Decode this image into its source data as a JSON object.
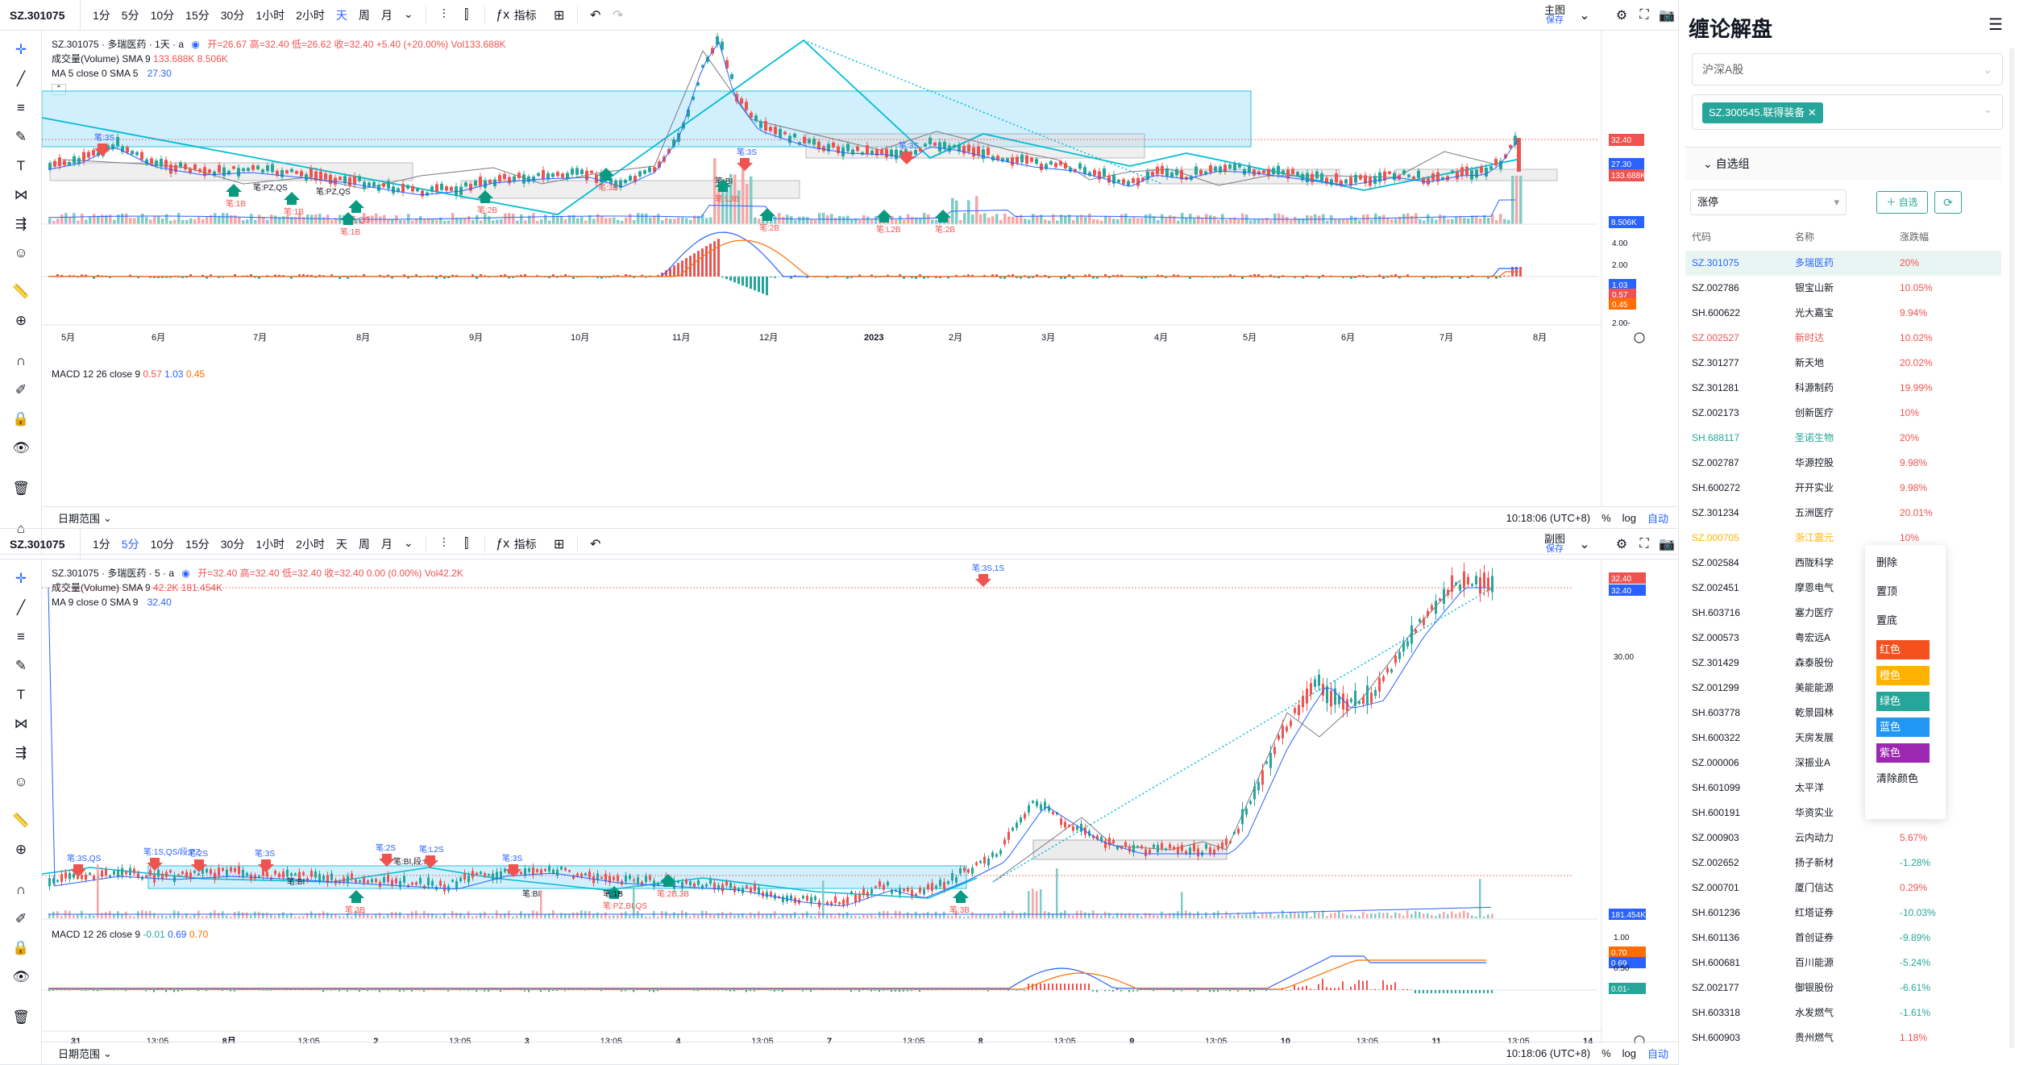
{
  "top": {
    "symbol": "SZ.301075",
    "intervals": [
      "1分",
      "5分",
      "10分",
      "15分",
      "30分",
      "1小时",
      "2小时",
      "天",
      "周",
      "月"
    ],
    "active_interval": "天",
    "indicator_label": "指标",
    "layout_label": "主图",
    "save_label": "保存",
    "legend_title": "SZ.301075 · 多瑞医药 · 1天 · a",
    "legend_ohlc": "开=26.67 高=32.40 低=26.62 收=32.40 +5.40 (+20.00%) Vol133.688K",
    "vol_label": "成交量(Volume) SMA 9",
    "vol_values": "133.688K 8.506K",
    "ma_label": "MA 5 close 0 SMA 5",
    "ma_value": "27.30",
    "macd_label": "MACD 12 26 close 9",
    "macd_v1": "0.57",
    "macd_v2": "1.03",
    "macd_v3": "0.45",
    "time_labels": [
      "5月",
      "6月",
      "7月",
      "8月",
      "9月",
      "10月",
      "11月",
      "12月",
      "2023",
      "2月",
      "3月",
      "4月",
      "5月",
      "6月",
      "7月",
      "8月"
    ],
    "price_tags": [
      "32.40",
      "27.30",
      "133.688K",
      "8.506K"
    ],
    "macd_axis": [
      "4.00",
      "2.00",
      "1.03",
      "0.57",
      "0.45",
      "2.00-"
    ],
    "date_range": "日期范围",
    "clock": "10:18:06 (UTC+8)",
    "pct": "%",
    "log": "log",
    "auto": "自动",
    "annotations": [
      "笔:3S",
      "笔:1B",
      "笔:PZ,QS",
      "笔:1B",
      "笔:PZ,QS",
      "笔:QS",
      "笔:1B",
      "笔:2B",
      "笔:3B",
      "笔:BI",
      "笔:3S",
      "笔:L3B",
      "笔:2B",
      "笔:3S",
      "笔:L2B",
      "笔:2B"
    ]
  },
  "bottom": {
    "symbol": "SZ.301075",
    "intervals": [
      "1分",
      "5分",
      "10分",
      "15分",
      "30分",
      "1小时",
      "2小时",
      "天",
      "周",
      "月"
    ],
    "active_interval": "5分",
    "indicator_label": "指标",
    "layout_label": "副图",
    "save_label": "保存",
    "legend_title": "SZ.301075 · 多瑞医药 · 5 · a",
    "legend_ohlc": "开=32.40 高=32.40 低=32.40 收=32.40 0.00 (0.00%) Vol42.2K",
    "vol_label": "成交量(Volume) SMA 9",
    "vol_values": "42.2K 181.454K",
    "ma_label": "MA 9 close 0 SMA 9",
    "ma_value": "32.40",
    "macd_label": "MACD 12 26 close 9",
    "macd_v1": "-0.01",
    "macd_v2": "0.69",
    "macd_v3": "0.70",
    "time_labels": [
      "31",
      "13:05",
      "8月",
      "13:05",
      "2",
      "13:05",
      "3",
      "13:05",
      "4",
      "13:05",
      "7",
      "13:05",
      "8",
      "13:05",
      "9",
      "13:05",
      "10",
      "13:05",
      "11",
      "13:05",
      "14"
    ],
    "price_tags": [
      "32.40",
      "32.40",
      "181.454K",
      "0.70",
      "0.69",
      "0.01-"
    ],
    "axis_labels": [
      "30.00",
      "1.00",
      "0.50"
    ],
    "date_range": "日期范围",
    "clock": "10:18:06 (UTC+8)",
    "pct": "%",
    "log": "log",
    "auto": "自动",
    "annotations": [
      "笔:3S,QS",
      "笔:1S,QS/段:PZ",
      "笔:2S",
      "笔:3S",
      "笔:BI",
      "笔:3B",
      "笔:2S",
      "笔:BI,段:XD",
      "笔:L2S",
      "笔:3S",
      "笔:BI",
      "笔:PZ,BI,QS",
      "笔:1B",
      "笔:2B,3B",
      "笔:3B",
      "笔:3S,1S"
    ]
  },
  "panel": {
    "title": "缠论解盘",
    "market": "沪深A股",
    "selected_tag": "SZ.300545.联得装备",
    "watch_group": "自选组",
    "filter": "涨停",
    "add_label": "自选",
    "columns": [
      "代码",
      "名称",
      "涨跌幅"
    ],
    "rows": [
      {
        "code": "SZ.301075",
        "name": "多瑞医药",
        "chg": "20%",
        "color": "#2962ff",
        "chgcolor": "#ef5350"
      },
      {
        "code": "SZ.002786",
        "name": "银宝山新",
        "chg": "10.05%",
        "color": "#131722",
        "chgcolor": "#ef5350"
      },
      {
        "code": "SH.600622",
        "name": "光大嘉宝",
        "chg": "9.94%",
        "color": "#131722",
        "chgcolor": "#ef5350"
      },
      {
        "code": "SZ.002527",
        "name": "新时达",
        "chg": "10.02%",
        "color": "#ef5350",
        "chgcolor": "#ef5350"
      },
      {
        "code": "SZ.301277",
        "name": "新天地",
        "chg": "20.02%",
        "color": "#131722",
        "chgcolor": "#ef5350"
      },
      {
        "code": "SZ.301281",
        "name": "科源制药",
        "chg": "19.99%",
        "color": "#131722",
        "chgcolor": "#ef5350"
      },
      {
        "code": "SZ.002173",
        "name": "创新医疗",
        "chg": "10%",
        "color": "#131722",
        "chgcolor": "#ef5350"
      },
      {
        "code": "SH.688117",
        "name": "圣诺生物",
        "chg": "20%",
        "color": "#26a69a",
        "chgcolor": "#ef5350"
      },
      {
        "code": "SZ.002787",
        "name": "华源控股",
        "chg": "9.98%",
        "color": "#131722",
        "chgcolor": "#ef5350"
      },
      {
        "code": "SH.600272",
        "name": "开开实业",
        "chg": "9.98%",
        "color": "#131722",
        "chgcolor": "#ef5350"
      },
      {
        "code": "SZ.301234",
        "name": "五洲医疗",
        "chg": "20.01%",
        "color": "#131722",
        "chgcolor": "#ef5350"
      },
      {
        "code": "SZ.000705",
        "name": "浙江震元",
        "chg": "10%",
        "color": "#ffb300",
        "chgcolor": "#ef5350"
      },
      {
        "code": "SZ.002584",
        "name": "西陇科学",
        "chg": "",
        "color": "#131722",
        "chgcolor": "#ef5350"
      },
      {
        "code": "SZ.002451",
        "name": "摩恩电气",
        "chg": "",
        "color": "#131722",
        "chgcolor": "#ef5350"
      },
      {
        "code": "SH.603716",
        "name": "塞力医疗",
        "chg": "",
        "color": "#131722",
        "chgcolor": "#ef5350"
      },
      {
        "code": "SZ.000573",
        "name": "粤宏远A",
        "chg": "",
        "color": "#131722",
        "chgcolor": "#ef5350"
      },
      {
        "code": "SZ.301429",
        "name": "森泰股份",
        "chg": "",
        "color": "#131722",
        "chgcolor": "#ef5350"
      },
      {
        "code": "SZ.001299",
        "name": "美能能源",
        "chg": "",
        "color": "#131722",
        "chgcolor": "#ef5350"
      },
      {
        "code": "SH.603778",
        "name": "乾景园林",
        "chg": "",
        "color": "#131722",
        "chgcolor": "#ef5350"
      },
      {
        "code": "SH.600322",
        "name": "天房发展",
        "chg": "",
        "color": "#131722",
        "chgcolor": "#ef5350"
      },
      {
        "code": "SZ.000006",
        "name": "深振业A",
        "chg": "",
        "color": "#131722",
        "chgcolor": "#ef5350"
      },
      {
        "code": "SH.601099",
        "name": "太平洋",
        "chg": "",
        "color": "#131722",
        "chgcolor": "#ef5350"
      },
      {
        "code": "SH.600191",
        "name": "华资实业",
        "chg": "",
        "color": "#131722",
        "chgcolor": "#ef5350"
      },
      {
        "code": "SZ.000903",
        "name": "云内动力",
        "chg": "5.67%",
        "color": "#131722",
        "chgcolor": "#ef5350"
      },
      {
        "code": "SZ.002652",
        "name": "扬子新材",
        "chg": "-1.28%",
        "color": "#131722",
        "chgcolor": "#26a69a"
      },
      {
        "code": "SZ.000701",
        "name": "厦门信达",
        "chg": "0.29%",
        "color": "#131722",
        "chgcolor": "#ef5350"
      },
      {
        "code": "SH.601236",
        "name": "红塔证券",
        "chg": "-10.03%",
        "color": "#131722",
        "chgcolor": "#26a69a"
      },
      {
        "code": "SH.601136",
        "name": "首创证券",
        "chg": "-9.89%",
        "color": "#131722",
        "chgcolor": "#26a69a"
      },
      {
        "code": "SH.600681",
        "name": "百川能源",
        "chg": "-5.24%",
        "color": "#131722",
        "chgcolor": "#26a69a"
      },
      {
        "code": "SZ.002177",
        "name": "御银股份",
        "chg": "-6.61%",
        "color": "#131722",
        "chgcolor": "#26a69a"
      },
      {
        "code": "SH.603318",
        "name": "水发燃气",
        "chg": "-1.61%",
        "color": "#131722",
        "chgcolor": "#26a69a"
      },
      {
        "code": "SH.600903",
        "name": "贵州燃气",
        "chg": "1.18%",
        "color": "#131722",
        "chgcolor": "#ef5350"
      }
    ],
    "context_menu": {
      "items": [
        "删除",
        "置顶",
        "置底"
      ],
      "colors": [
        {
          "label": "红色",
          "hex": "#f4511e"
        },
        {
          "label": "橙色",
          "hex": "#ffb300"
        },
        {
          "label": "绿色",
          "hex": "#26a69a"
        },
        {
          "label": "蓝色",
          "hex": "#2196f3"
        },
        {
          "label": "紫色",
          "hex": "#9c27b0"
        }
      ],
      "clear": "清除颜色"
    }
  },
  "colors": {
    "up": "#ef5350",
    "down": "#26a69a",
    "accent": "#2962ff",
    "zone": "#b3e5fc",
    "cyan": "#00bcd4"
  }
}
